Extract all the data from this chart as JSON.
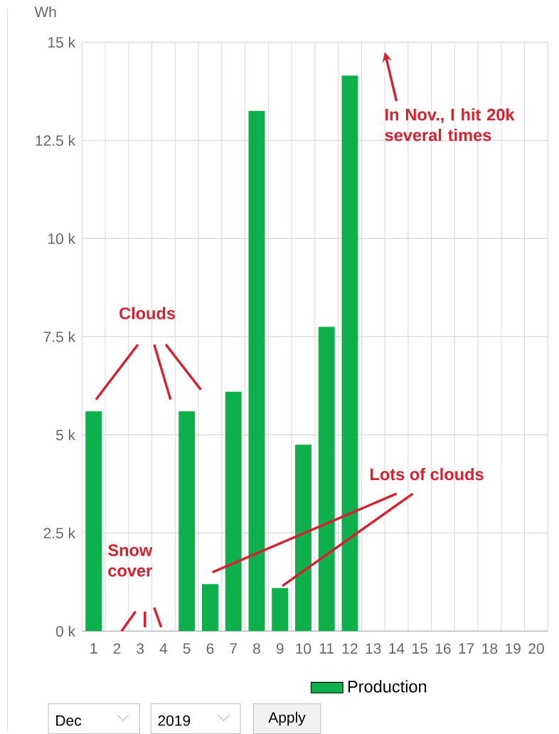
{
  "chart_data": {
    "type": "bar",
    "ylabel": "Wh",
    "categories": [
      "1",
      "2",
      "3",
      "4",
      "5",
      "6",
      "7",
      "8",
      "9",
      "10",
      "11",
      "12",
      "13",
      "14",
      "15",
      "16",
      "17",
      "18",
      "19",
      "20"
    ],
    "series": [
      {
        "name": "Production",
        "color": "#0db04b",
        "values": [
          5600,
          0,
          0,
          0,
          5600,
          1200,
          6100,
          13250,
          1100,
          4750,
          7750,
          14150,
          null,
          null,
          null,
          null,
          null,
          null,
          null,
          null
        ]
      }
    ],
    "ylim": [
      0,
      15000
    ],
    "yticks": [
      {
        "value": 0,
        "label": "0 k"
      },
      {
        "value": 2500,
        "label": "2.5 k"
      },
      {
        "value": 5000,
        "label": "5 k"
      },
      {
        "value": 7500,
        "label": "7.5 k"
      },
      {
        "value": 10000,
        "label": "10 k"
      },
      {
        "value": 12500,
        "label": "12.5 k"
      },
      {
        "value": 15000,
        "label": "15 k"
      }
    ],
    "grid": true,
    "legend": "bottom",
    "annotations": [
      "Clouds",
      "Snow cover",
      {
        "text": "Lots of clouds",
        "x": "9",
        "y": 1100
      },
      "In Nov., I hit 20k several times",
      "Dec",
      "2019",
      "Apply"
    ]
  }
}
